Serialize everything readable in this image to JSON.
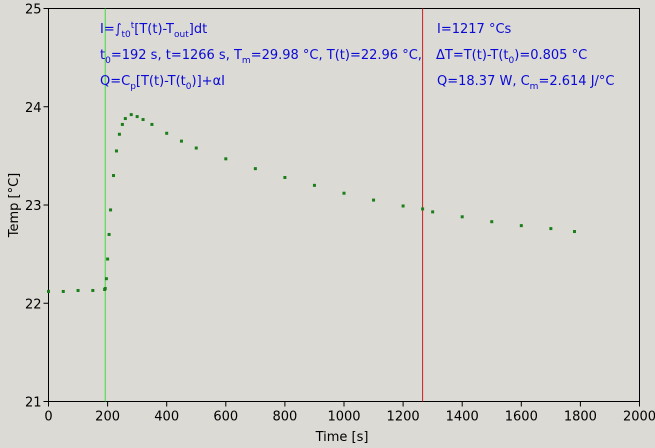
{
  "chart_data": {
    "type": "scatter",
    "xlabel": "Time [s]",
    "ylabel": "Temp [°C]",
    "xlim": [
      0,
      2000
    ],
    "ylim": [
      21,
      25
    ],
    "xticks": [
      "0",
      "200",
      "400",
      "600",
      "800",
      "1000",
      "1200",
      "1400",
      "1600",
      "1800",
      "2000"
    ],
    "yticks": [
      "21",
      "22",
      "23",
      "24",
      "25"
    ],
    "grid": false,
    "series_color": "#1a7f1a",
    "series": [
      {
        "x": [
          0,
          50,
          100,
          150,
          190,
          192,
          196,
          200,
          205,
          210,
          220,
          230,
          240,
          250,
          260,
          280,
          300,
          320,
          350,
          400,
          450,
          500,
          600,
          700,
          800,
          900,
          1000,
          1100,
          1200,
          1266,
          1300,
          1400,
          1500,
          1600,
          1700,
          1780
        ],
        "y": [
          22.12,
          22.12,
          22.13,
          22.13,
          22.14,
          22.15,
          22.25,
          22.45,
          22.7,
          22.95,
          23.3,
          23.55,
          23.72,
          23.82,
          23.88,
          23.92,
          23.9,
          23.87,
          23.82,
          23.73,
          23.65,
          23.58,
          23.47,
          23.37,
          23.28,
          23.2,
          23.12,
          23.05,
          22.99,
          22.96,
          22.93,
          22.88,
          22.83,
          22.79,
          22.76,
          22.73
        ]
      }
    ],
    "vlines": [
      {
        "x": 192,
        "color": "#3fdc3f"
      },
      {
        "x": 1266,
        "color": "#c81e1e"
      }
    ],
    "annotations": {
      "left": {
        "line1": {
          "a": "I=∫",
          "b": "t0",
          "c": "t",
          "d": "[T(t)-T",
          "e": "out",
          "f": "]dt"
        },
        "line2": {
          "a": "t",
          "b": "0",
          "c": "=192 s,   t=1266 s,   T",
          "d": "m",
          "e": "=29.98 °C,  T(t)=22.96 °C,",
          "f": "ΔT=T(t)-T(t",
          "g": "0",
          "h": ")=0.805 °C"
        },
        "line3": {
          "a": "Q=C",
          "b": "p",
          "c": "[T(t)-T(t",
          "d": "0",
          "e": ")]+αI"
        }
      },
      "right": {
        "line1": "I=1217 °Cs",
        "line2": {
          "a": "Q=18.37 W,   C",
          "b": "m",
          "c": "=2.614 J/°C"
        }
      }
    }
  }
}
